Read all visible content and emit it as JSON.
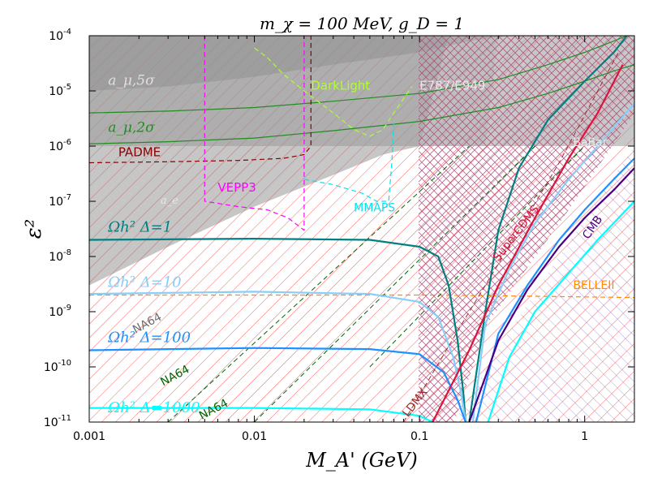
{
  "chart_data": {
    "type": "line",
    "title": "m_χ = 100 MeV, g_D = 1",
    "xlabel": "M_A' (GeV)",
    "ylabel": "ε²",
    "xscale": "log",
    "yscale": "log",
    "xlim": [
      0.001,
      2
    ],
    "ylim": [
      1e-11,
      0.0001
    ],
    "x_ticks": [
      {
        "v": 0.001,
        "label": "0.001"
      },
      {
        "v": 0.01,
        "label": "0.01"
      },
      {
        "v": 0.1,
        "label": "0.1"
      },
      {
        "v": 1,
        "label": "1"
      }
    ],
    "y_ticks": [
      {
        "v": 0.0001,
        "label": "10-4"
      },
      {
        "v": 1e-05,
        "label": "10-5"
      },
      {
        "v": 1e-06,
        "label": "10-6"
      },
      {
        "v": 1e-07,
        "label": "10-7"
      },
      {
        "v": 1e-08,
        "label": "10-8"
      },
      {
        "v": 1e-09,
        "label": "10-9"
      },
      {
        "v": 1e-10,
        "label": "10-10"
      },
      {
        "v": 1e-11,
        "label": "10-11"
      }
    ],
    "regions": [
      {
        "name": "a_mu_5sigma",
        "label": "a_μ,5σ",
        "fill": "#808080",
        "opacity": 0.5,
        "points": [
          [
            0.001,
            0.0001
          ],
          [
            0.001,
            1e-05
          ],
          [
            0.003,
            1.2e-05
          ],
          [
            0.01,
            1.8e-05
          ],
          [
            0.03,
            3e-05
          ],
          [
            0.1,
            5e-05
          ],
          [
            0.2,
            8e-05
          ],
          [
            0.35,
            0.0001
          ]
        ]
      },
      {
        "name": "a_e",
        "label": "a_e",
        "fill": "#808080",
        "opacity": 0.45,
        "points": [
          [
            0.001,
            0.0001
          ],
          [
            0.001,
            3e-09
          ],
          [
            0.003,
            1.5e-08
          ],
          [
            0.01,
            8e-08
          ],
          [
            0.03,
            3e-07
          ],
          [
            0.06,
            7e-07
          ],
          [
            0.1,
            1e-06
          ],
          [
            0.15,
            0.0001
          ]
        ]
      },
      {
        "name": "babar",
        "label": "BaBar",
        "fill": "#9a9a9a",
        "opacity": 0.55,
        "points": [
          [
            0.001,
            1e-06
          ],
          [
            2,
            1e-06
          ],
          [
            2,
            0.0001
          ],
          [
            0.001,
            0.0001
          ]
        ]
      },
      {
        "name": "e787",
        "label": "E787/E949",
        "fill": "#b0b0b0",
        "opacity": 0.35,
        "points": [
          [
            0.1,
            0.0001
          ],
          [
            0.1,
            1e-06
          ],
          [
            0.25,
            1e-06
          ],
          [
            0.3,
            0.0001
          ]
        ]
      }
    ],
    "series": [
      {
        "name": "a_mu_2sigma_upper",
        "color": "#228B22",
        "width": 1.2,
        "dash": "",
        "points": [
          [
            0.001,
            4e-06
          ],
          [
            0.003,
            4.3e-06
          ],
          [
            0.01,
            5e-06
          ],
          [
            0.03,
            6.5e-06
          ],
          [
            0.1,
            9e-06
          ],
          [
            0.3,
            1.6e-05
          ],
          [
            0.6,
            3e-05
          ],
          [
            1,
            5e-05
          ],
          [
            1.5,
            8e-05
          ],
          [
            1.8,
            0.0001
          ]
        ]
      },
      {
        "name": "a_mu_2sigma_lower",
        "color": "#228B22",
        "width": 1.2,
        "dash": "",
        "points": [
          [
            0.001,
            1.1e-06
          ],
          [
            0.003,
            1.2e-06
          ],
          [
            0.01,
            1.4e-06
          ],
          [
            0.03,
            1.9e-06
          ],
          [
            0.1,
            2.8e-06
          ],
          [
            0.3,
            5e-06
          ],
          [
            0.6,
            9e-06
          ],
          [
            1,
            1.5e-05
          ],
          [
            1.5,
            2.3e-05
          ],
          [
            2,
            3e-05
          ]
        ]
      },
      {
        "name": "padme",
        "color": "#8B0000",
        "width": 1.2,
        "dash": "6,4",
        "points": [
          [
            0.001,
            5e-07
          ],
          [
            0.003,
            5.2e-07
          ],
          [
            0.008,
            5.5e-07
          ],
          [
            0.015,
            6e-07
          ],
          [
            0.02,
            7e-07
          ],
          [
            0.022,
            1e-06
          ],
          [
            0.022,
            0.0001
          ]
        ]
      },
      {
        "name": "vepp3",
        "color": "#FF00FF",
        "width": 1.2,
        "dash": "6,4",
        "points": [
          [
            0.005,
            0.0001
          ],
          [
            0.005,
            1e-07
          ],
          [
            0.008,
            8e-08
          ],
          [
            0.012,
            7e-08
          ],
          [
            0.016,
            5e-08
          ],
          [
            0.02,
            3e-08
          ],
          [
            0.02,
            0.0001
          ]
        ]
      },
      {
        "name": "darklight",
        "color": "#ADFF2F",
        "width": 1.2,
        "dash": "6,4",
        "points": [
          [
            0.01,
            6e-05
          ],
          [
            0.012,
            4e-05
          ],
          [
            0.015,
            2e-05
          ],
          [
            0.02,
            1e-05
          ],
          [
            0.03,
            4e-06
          ],
          [
            0.04,
            2e-06
          ],
          [
            0.05,
            1.5e-06
          ],
          [
            0.06,
            2e-06
          ],
          [
            0.07,
            4e-06
          ],
          [
            0.09,
            1.2e-05
          ]
        ]
      },
      {
        "name": "mmaps",
        "color": "#00E5EE",
        "width": 1.2,
        "dash": "6,4",
        "points": [
          [
            0.02,
            2.5e-07
          ],
          [
            0.03,
            2e-07
          ],
          [
            0.045,
            1.4e-07
          ],
          [
            0.055,
            1e-07
          ],
          [
            0.065,
            1e-07
          ],
          [
            0.068,
            5e-07
          ],
          [
            0.07,
            3e-06
          ]
        ]
      },
      {
        "name": "belleii",
        "color": "#FF8C00",
        "width": 1.2,
        "dash": "6,4",
        "points": [
          [
            0.001,
            2e-09
          ],
          [
            0.1,
            2e-09
          ],
          [
            0.5,
            1.9e-09
          ],
          [
            2,
            1.8e-09
          ]
        ]
      },
      {
        "name": "na64_1",
        "color": "#006400",
        "width": 1.0,
        "dash": "6,4",
        "points": [
          [
            0.003,
            1e-11
          ],
          [
            0.2,
            1e-06
          ]
        ]
      },
      {
        "name": "na64_2",
        "color": "#006400",
        "width": 1.0,
        "dash": "6,4",
        "points": [
          [
            0.01,
            1e-11
          ],
          [
            0.5,
            1e-06
          ]
        ]
      },
      {
        "name": "na64_3",
        "color": "#006400",
        "width": 1.0,
        "dash": "6,4",
        "points": [
          [
            0.05,
            1e-10
          ],
          [
            1,
            1e-06
          ]
        ]
      },
      {
        "name": "omega_1",
        "color": "#008080",
        "width": 2.2,
        "dash": "",
        "points": [
          [
            0.001,
            2e-08
          ],
          [
            0.01,
            2.1e-08
          ],
          [
            0.05,
            2e-08
          ],
          [
            0.1,
            1.5e-08
          ],
          [
            0.13,
            1e-08
          ],
          [
            0.15,
            3e-09
          ],
          [
            0.17,
            3e-10
          ],
          [
            0.185,
            3e-11
          ],
          [
            0.19,
            1e-11
          ]
        ]
      },
      {
        "name": "omega_10",
        "color": "#87CEFA",
        "width": 2.2,
        "dash": "",
        "points": [
          [
            0.001,
            2.1e-09
          ],
          [
            0.01,
            2.3e-09
          ],
          [
            0.05,
            2.1e-09
          ],
          [
            0.1,
            1.5e-09
          ],
          [
            0.13,
            8e-10
          ],
          [
            0.16,
            1.5e-10
          ],
          [
            0.18,
            3e-11
          ],
          [
            0.19,
            1e-11
          ]
        ]
      },
      {
        "name": "omega_100",
        "color": "#1E90FF",
        "width": 2.2,
        "dash": "",
        "points": [
          [
            0.001,
            2e-10
          ],
          [
            0.01,
            2.2e-10
          ],
          [
            0.05,
            2.1e-10
          ],
          [
            0.1,
            1.7e-10
          ],
          [
            0.14,
            8e-11
          ],
          [
            0.17,
            2.5e-11
          ],
          [
            0.19,
            1e-11
          ]
        ]
      },
      {
        "name": "omega_1000",
        "color": "#00FFFF",
        "width": 2.2,
        "dash": "",
        "points": [
          [
            0.001,
            1.8e-11
          ],
          [
            0.01,
            1.8e-11
          ],
          [
            0.05,
            1.7e-11
          ],
          [
            0.1,
            1.3e-11
          ],
          [
            0.12,
            1e-11
          ]
        ]
      },
      {
        "name": "omega_1_right",
        "color": "#008080",
        "width": 2.2,
        "dash": "",
        "points": [
          [
            0.2,
            1e-11
          ],
          [
            0.25,
            1e-09
          ],
          [
            0.3,
            3e-08
          ],
          [
            0.4,
            4e-07
          ],
          [
            0.6,
            3e-06
          ],
          [
            1,
            1.5e-05
          ],
          [
            1.5,
            5e-05
          ],
          [
            1.8,
            0.0001
          ]
        ]
      },
      {
        "name": "omega_10_right",
        "color": "#87CEFA",
        "width": 2.2,
        "dash": "",
        "points": [
          [
            0.21,
            1e-11
          ],
          [
            0.25,
            6e-10
          ],
          [
            0.35,
            6e-09
          ],
          [
            0.5,
            4e-08
          ],
          [
            0.8,
            2.5e-07
          ],
          [
            1.2,
            1e-06
          ],
          [
            2,
            6e-06
          ]
        ]
      },
      {
        "name": "omega_100_right",
        "color": "#1E90FF",
        "width": 2.2,
        "dash": "",
        "points": [
          [
            0.22,
            1e-11
          ],
          [
            0.3,
            4e-10
          ],
          [
            0.45,
            3e-09
          ],
          [
            0.7,
            2e-08
          ],
          [
            1,
            7e-08
          ],
          [
            1.5,
            2.5e-07
          ],
          [
            2,
            6e-07
          ]
        ]
      },
      {
        "name": "cmb",
        "color": "#4B0082",
        "width": 2.2,
        "dash": "",
        "points": [
          [
            0.2,
            1e-11
          ],
          [
            0.3,
            3e-10
          ],
          [
            0.45,
            2.5e-09
          ],
          [
            0.7,
            1.5e-08
          ],
          [
            1,
            5e-08
          ],
          [
            1.5,
            1.6e-07
          ],
          [
            2,
            4e-07
          ]
        ]
      },
      {
        "name": "omega_1000_right",
        "color": "#00FFFF",
        "width": 2.2,
        "dash": "",
        "points": [
          [
            0.26,
            1e-11
          ],
          [
            0.35,
            1.5e-10
          ],
          [
            0.5,
            1e-09
          ],
          [
            0.8,
            5e-09
          ],
          [
            1.2,
            2e-08
          ],
          [
            2,
            1e-07
          ]
        ]
      },
      {
        "name": "supercdms",
        "color": "#DC143C",
        "width": 2.2,
        "dash": "",
        "points": [
          [
            0.12,
            1e-11
          ],
          [
            0.2,
            2e-10
          ],
          [
            0.3,
            3e-09
          ],
          [
            0.5,
            5e-08
          ],
          [
            0.8,
            6e-07
          ],
          [
            1.2,
            4e-06
          ],
          [
            1.7,
            3e-05
          ]
        ]
      },
      {
        "name": "ldmx",
        "color": "#A52A2A",
        "width": 1.0,
        "dash": "6,4",
        "points": [
          [
            0.08,
            1e-11
          ],
          [
            0.2,
            1e-09
          ],
          [
            0.4,
            3e-08
          ],
          [
            0.7,
            5e-07
          ],
          [
            1.2,
            1e-05
          ],
          [
            1.6,
            5e-05
          ]
        ]
      }
    ],
    "labels": [
      {
        "name": "label-a-mu-5sigma",
        "text": "a_μ,5σ",
        "x": 0.0013,
        "y": 1.3e-05,
        "color": "#e0e0e0",
        "size": 17,
        "italic": true
      },
      {
        "name": "label-a-mu-2sigma",
        "text": "a_μ,2σ",
        "x": 0.0013,
        "y": 1.8e-06,
        "color": "#228B22",
        "size": 17,
        "italic": true
      },
      {
        "name": "label-padme",
        "text": "PADME",
        "x": 0.0015,
        "y": 6.5e-07,
        "color": "#8B0000",
        "size": 15,
        "italic": false
      },
      {
        "name": "label-darklight",
        "text": "DarkLight",
        "x": 0.022,
        "y": 1.05e-05,
        "color": "#ADFF2F",
        "size": 15,
        "italic": false
      },
      {
        "name": "label-e787",
        "text": "E787/E949",
        "x": 0.1,
        "y": 1.05e-05,
        "color": "#e8e8e8",
        "size": 15,
        "italic": false
      },
      {
        "name": "label-babar",
        "text": "BaBar",
        "x": 0.85,
        "y": 1e-06,
        "color": "#e8e8e8",
        "size": 14,
        "italic": false
      },
      {
        "name": "label-vepp3",
        "text": "VEPP3",
        "x": 0.006,
        "y": 1.5e-07,
        "color": "#FF00FF",
        "size": 15,
        "italic": false
      },
      {
        "name": "label-a-e",
        "text": "a_e",
        "x": 0.0027,
        "y": 9e-08,
        "color": "#e8e8e8",
        "size": 13,
        "italic": true
      },
      {
        "name": "label-mmaps",
        "text": "MMAPS",
        "x": 0.04,
        "y": 6.5e-08,
        "color": "#00E5EE",
        "size": 14,
        "italic": false
      },
      {
        "name": "label-omega-1",
        "text": "Ωh² Δ=1",
        "x": 0.0013,
        "y": 2.8e-08,
        "color": "#008080",
        "size": 18,
        "italic": true
      },
      {
        "name": "label-omega-10",
        "text": "Ωh² Δ=10",
        "x": 0.0013,
        "y": 2.8e-09,
        "color": "#87CEFA",
        "size": 18,
        "italic": true
      },
      {
        "name": "label-omega-100",
        "text": "Ωh² Δ=100",
        "x": 0.0013,
        "y": 2.8e-10,
        "color": "#1E90FF",
        "size": 18,
        "italic": true
      },
      {
        "name": "label-omega-1000",
        "text": "Ωh² Δ=1000",
        "x": 0.0013,
        "y": 1.5e-11,
        "color": "#00FFFF",
        "size": 18,
        "italic": true
      },
      {
        "name": "label-na64-grey",
        "text": "NA64",
        "x": 0.0019,
        "y": 4e-10,
        "color": "#6e6e6e",
        "size": 14,
        "italic": false,
        "rotate": -28
      },
      {
        "name": "label-na64-1",
        "text": "NA64",
        "x": 0.0028,
        "y": 4.5e-11,
        "color": "#006400",
        "size": 14,
        "italic": false,
        "rotate": -28
      },
      {
        "name": "label-na64-2",
        "text": "NA64",
        "x": 0.0048,
        "y": 1.1e-11,
        "color": "#006400",
        "size": 14,
        "italic": false,
        "rotate": -28
      },
      {
        "name": "label-ldmx",
        "text": "LDMX",
        "x": 0.085,
        "y": 1.2e-11,
        "color": "#A52A2A",
        "size": 14,
        "italic": false,
        "rotate": -52
      },
      {
        "name": "label-supercdms",
        "text": "SuperCDMS",
        "x": 0.3,
        "y": 8e-09,
        "color": "#DC143C",
        "size": 14,
        "italic": false,
        "rotate": -52
      },
      {
        "name": "label-cmb",
        "text": "CMB",
        "x": 1.05,
        "y": 2e-08,
        "color": "#4B0082",
        "size": 14,
        "italic": false,
        "rotate": -55
      },
      {
        "name": "label-belleii",
        "text": "BELLEII",
        "x": 0.85,
        "y": 2.6e-09,
        "color": "#FF8C00",
        "size": 14,
        "italic": false
      }
    ]
  }
}
